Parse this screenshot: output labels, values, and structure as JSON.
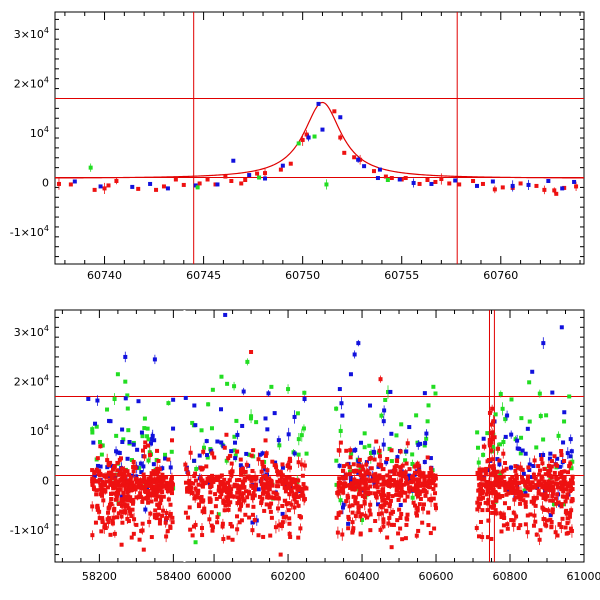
{
  "chart_data": [
    {
      "type": "scatter",
      "panel": "top",
      "title": "",
      "xlabel": "",
      "ylabel": "",
      "xlim": [
        60737.5,
        60764.2
      ],
      "ylim": [
        -16500,
        34500
      ],
      "xticks": [
        {
          "value": 60740,
          "label": "60740"
        },
        {
          "value": 60745,
          "label": "60745"
        },
        {
          "value": 60750,
          "label": "60750"
        },
        {
          "value": 60755,
          "label": "60755"
        },
        {
          "value": 60760,
          "label": "60760"
        }
      ],
      "yticks": [
        {
          "value": 30000,
          "base": "3×10",
          "exp": "4"
        },
        {
          "value": 20000,
          "base": "2×10",
          "exp": "4"
        },
        {
          "value": 10000,
          "base": "10",
          "exp": "4"
        },
        {
          "value": 0,
          "base": "0",
          "exp": ""
        },
        {
          "value": -10000,
          "base": "-1×10",
          "exp": "4"
        }
      ],
      "hlines": [
        17000,
        1000
      ],
      "vlines": [
        60744.5,
        60757.8
      ],
      "model_curve": {
        "baseline": 800,
        "peak": 16200,
        "t0": 60751.0,
        "width": 1.15,
        "color": "#e00000"
      },
      "series": [
        {
          "name": "red",
          "color": "#ee1111",
          "points": [
            [
              60737.7,
              -300
            ],
            [
              60738.3,
              -400
            ],
            [
              60739.5,
              -1500
            ],
            [
              60740.0,
              -1200
            ],
            [
              60740.2,
              -600
            ],
            [
              60740.6,
              300
            ],
            [
              60741.7,
              -1300
            ],
            [
              60742.6,
              -1500
            ],
            [
              60743.0,
              -800
            ],
            [
              60743.6,
              600
            ],
            [
              60744.0,
              -500
            ],
            [
              60744.8,
              -200
            ],
            [
              60745.2,
              600
            ],
            [
              60745.6,
              -400
            ],
            [
              60746.1,
              1200
            ],
            [
              60746.4,
              300
            ],
            [
              60746.9,
              -200
            ],
            [
              60747.1,
              500
            ],
            [
              60747.7,
              1800
            ],
            [
              60748.1,
              1900
            ],
            [
              60748.9,
              2600
            ],
            [
              60749.4,
              3800
            ],
            [
              60750.0,
              8600
            ],
            [
              60750.2,
              9700
            ],
            [
              60751.6,
              14400
            ],
            [
              60751.9,
              9100
            ],
            [
              60752.1,
              6000
            ],
            [
              60752.6,
              5100
            ],
            [
              60752.9,
              4600
            ],
            [
              60753.6,
              2300
            ],
            [
              60754.2,
              1200
            ],
            [
              60754.5,
              900
            ],
            [
              60755.0,
              600
            ],
            [
              60755.2,
              900
            ],
            [
              60755.9,
              -300
            ],
            [
              60756.3,
              500
            ],
            [
              60756.7,
              100
            ],
            [
              60757.0,
              700
            ],
            [
              60757.4,
              -200
            ],
            [
              60757.9,
              -400
            ],
            [
              60758.6,
              300
            ],
            [
              60759.1,
              -300
            ],
            [
              60759.7,
              -1400
            ],
            [
              60760.6,
              -1100
            ],
            [
              60761.0,
              -200
            ],
            [
              60761.8,
              -700
            ],
            [
              60762.2,
              -1500
            ],
            [
              60762.7,
              -1600
            ],
            [
              60762.8,
              -2300
            ],
            [
              60763.2,
              -1100
            ],
            [
              60763.8,
              -800
            ],
            [
              60760.1,
              -1000
            ]
          ]
        },
        {
          "name": "blue",
          "color": "#1111dd",
          "points": [
            [
              60738.5,
              200
            ],
            [
              60739.8,
              -800
            ],
            [
              60741.4,
              -900
            ],
            [
              60742.3,
              -300
            ],
            [
              60743.2,
              -1200
            ],
            [
              60744.6,
              -600
            ],
            [
              60745.7,
              -400
            ],
            [
              60746.5,
              4400
            ],
            [
              60747.3,
              1500
            ],
            [
              60748.1,
              800
            ],
            [
              60749.0,
              3400
            ],
            [
              60750.3,
              9100
            ],
            [
              60751.0,
              10700
            ],
            [
              60751.9,
              13200
            ],
            [
              60752.8,
              4600
            ],
            [
              60753.1,
              3300
            ],
            [
              60753.8,
              900
            ],
            [
              60754.9,
              600
            ],
            [
              60755.6,
              -100
            ],
            [
              60756.5,
              -300
            ],
            [
              60757.7,
              400
            ],
            [
              60758.8,
              -700
            ],
            [
              60759.6,
              200
            ],
            [
              60760.6,
              -700
            ],
            [
              60761.4,
              -500
            ],
            [
              60762.4,
              300
            ],
            [
              60763.1,
              -1200
            ],
            [
              60763.7,
              100
            ],
            [
              60750.8,
              15900
            ],
            [
              60753.9,
              2600
            ]
          ]
        },
        {
          "name": "green",
          "color": "#22dd22",
          "points": [
            [
              60739.3,
              3000
            ],
            [
              60744.7,
              -1000
            ],
            [
              60747.8,
              1000
            ],
            [
              60749.8,
              7900
            ],
            [
              60750.6,
              9300
            ],
            [
              60751.2,
              -400
            ],
            [
              60754.3,
              500
            ]
          ]
        }
      ]
    },
    {
      "type": "scatter",
      "panel": "bottom",
      "title": "",
      "xlabel": "",
      "ylabel": "",
      "xlim": [
        58080,
        61000
      ],
      "ylim": [
        -16500,
        34500
      ],
      "xticks": [
        {
          "value": 58200,
          "label": "58200"
        },
        {
          "value": 58400,
          "label": "58400"
        },
        {
          "value": 60000,
          "label": "60000"
        },
        {
          "value": 60200,
          "label": "60200"
        },
        {
          "value": 60400,
          "label": "60400"
        },
        {
          "value": 60600,
          "label": "60600"
        },
        {
          "value": 60800,
          "label": "60800"
        },
        {
          "value": 61000,
          "label": "61000"
        }
      ],
      "axis_break": {
        "after": 58430,
        "resume": 59920
      },
      "yticks": [
        {
          "value": 30000,
          "base": "3×10",
          "exp": "4"
        },
        {
          "value": 20000,
          "base": "2×10",
          "exp": "4"
        },
        {
          "value": 10000,
          "base": "10",
          "exp": "4"
        },
        {
          "value": 0,
          "base": "0",
          "exp": ""
        },
        {
          "value": -10000,
          "base": "-1×10",
          "exp": "4"
        }
      ],
      "hlines": [
        17000,
        1000
      ],
      "vlines": [
        60744.5,
        60757.8
      ],
      "seasons": [
        [
          58180,
          58400
        ],
        [
          59920,
          60250
        ],
        [
          60330,
          60600
        ],
        [
          60710,
          60970
        ]
      ],
      "series": [
        {
          "name": "red",
          "color": "#ee1111",
          "n_per_season": 260,
          "center": -1000,
          "spread": 3800,
          "outliers": [
            [
              58230,
              -11000
            ],
            [
              58260,
              -13000
            ],
            [
              58300,
              -9000
            ],
            [
              58320,
              -14000
            ],
            [
              58350,
              -7000
            ],
            [
              59950,
              -9000
            ],
            [
              60050,
              -12000
            ],
            [
              60110,
              -8000
            ],
            [
              60180,
              -15000
            ],
            [
              60450,
              -10000
            ],
            [
              60480,
              -13500
            ],
            [
              60520,
              -9000
            ],
            [
              60810,
              -9000
            ],
            [
              60880,
              -12000
            ],
            [
              60100,
              26000
            ],
            [
              60450,
              20500
            ],
            [
              60755,
              12000
            ],
            [
              60510,
              3000
            ],
            [
              60720,
              1500
            ]
          ]
        },
        {
          "name": "blue",
          "color": "#1111dd",
          "n_per_season": 55,
          "center": 3000,
          "spread": 4000,
          "outliers": [
            [
              58270,
              25000
            ],
            [
              58350,
              24500
            ],
            [
              58170,
              16500
            ],
            [
              60030,
              33500
            ],
            [
              60390,
              27800
            ],
            [
              60380,
              25500
            ],
            [
              60370,
              21500
            ],
            [
              60940,
              31000
            ],
            [
              60890,
              27800
            ],
            [
              60860,
              22000
            ],
            [
              60340,
              18500
            ],
            [
              58230,
              12000
            ],
            [
              60080,
              18000
            ],
            [
              60910,
              -7000
            ]
          ]
        },
        {
          "name": "green",
          "color": "#22dd22",
          "n_per_season": 40,
          "center": 5500,
          "spread": 4500,
          "outliers": [
            [
              58250,
              21500
            ],
            [
              58270,
              20000
            ],
            [
              59950,
              -12500
            ],
            [
              60020,
              21000
            ],
            [
              60090,
              24000
            ],
            [
              60100,
              13000
            ],
            [
              60775,
              17500
            ],
            [
              60780,
              14500
            ],
            [
              60960,
              17000
            ],
            [
              60400,
              -8000
            ],
            [
              60200,
              18500
            ]
          ]
        }
      ]
    }
  ]
}
